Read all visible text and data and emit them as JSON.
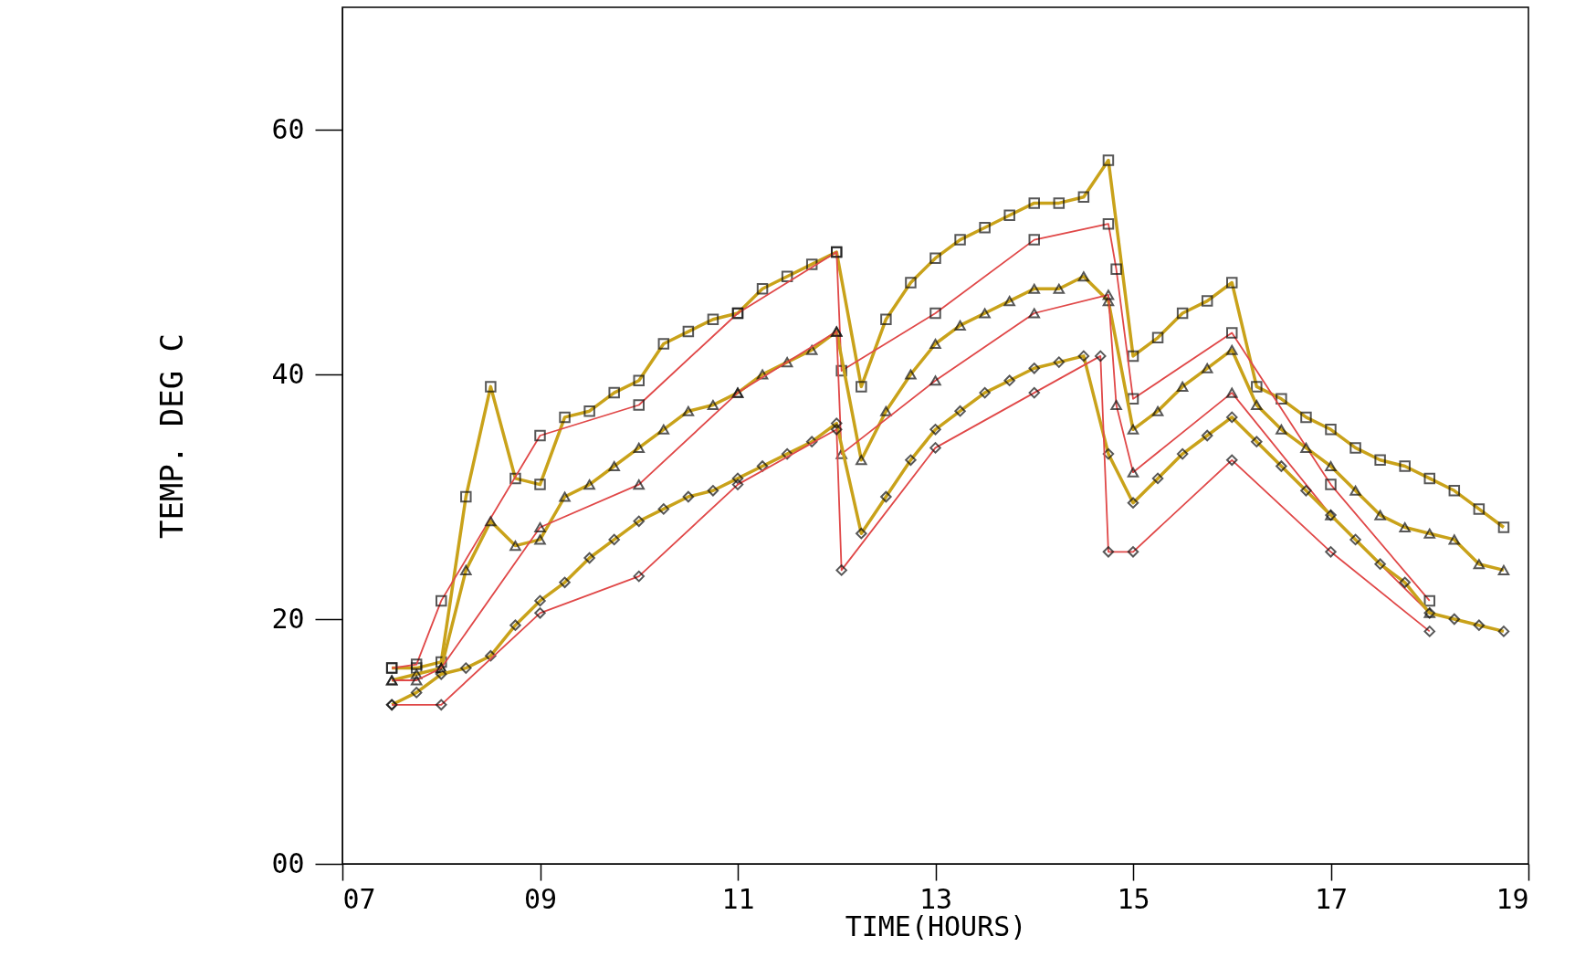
{
  "chart_data": {
    "type": "line",
    "xlabel": "TIME(HOURS)",
    "ylabel": "TEMP. DEG C",
    "xlim": [
      7,
      19
    ],
    "ylim": [
      0,
      70
    ],
    "xticks": [
      {
        "value": 7,
        "label": "07"
      },
      {
        "value": 9,
        "label": "09"
      },
      11,
      13,
      15,
      17,
      19
    ],
    "yticks": [
      {
        "value": 0,
        "label": "00"
      },
      20,
      40,
      60
    ],
    "series": [
      {
        "color": "#c9a21a",
        "marker": "square",
        "x": [
          7.5,
          7.75,
          8,
          8.25,
          8.5,
          8.75,
          9,
          9.25,
          9.5,
          9.75,
          10,
          10.25,
          10.5,
          10.75,
          11,
          11.25,
          11.5,
          11.75,
          12,
          12.25,
          12.5,
          12.75,
          13,
          13.25,
          13.5,
          13.75,
          14,
          14.25,
          14.5,
          14.75,
          15,
          15.25,
          15.5,
          15.75,
          16,
          16.25,
          16.5,
          16.75,
          17,
          17.25,
          17.5,
          17.75,
          18,
          18.25,
          18.5,
          18.75
        ],
        "values": [
          16,
          16,
          16.5,
          30,
          39,
          31.5,
          31,
          36.5,
          37,
          38.5,
          39.5,
          42.5,
          43.5,
          44.5,
          45,
          47,
          48,
          49,
          50,
          39,
          44.5,
          47.5,
          49.5,
          51,
          52,
          53,
          54,
          54,
          54.5,
          57.5,
          41.5,
          43,
          45,
          46,
          47.5,
          39,
          38,
          36.5,
          35.5,
          34,
          33,
          32.5,
          31.5,
          30.5,
          29,
          27.5
        ]
      },
      {
        "color": "#e04848",
        "marker": "square",
        "x": [
          7.5,
          7.75,
          8,
          9,
          10,
          11,
          12,
          12.05,
          13,
          14,
          14.75,
          14.83,
          15,
          16,
          17,
          18
        ],
        "values": [
          16,
          16.3,
          21.5,
          35,
          37.5,
          45,
          50,
          40.3,
          45,
          51,
          52.3,
          48.6,
          38,
          43.4,
          31,
          21.5
        ]
      },
      {
        "color": "#c9a21a",
        "marker": "triangle",
        "x": [
          7.5,
          7.75,
          8,
          8.25,
          8.5,
          8.75,
          9,
          9.25,
          9.5,
          9.75,
          10,
          10.25,
          10.5,
          10.75,
          11,
          11.25,
          11.5,
          11.75,
          12,
          12.25,
          12.5,
          12.75,
          13,
          13.25,
          13.5,
          13.75,
          14,
          14.25,
          14.5,
          14.75,
          15,
          15.25,
          15.5,
          15.75,
          16,
          16.25,
          16.5,
          16.75,
          17,
          17.25,
          17.5,
          17.75,
          18,
          18.25,
          18.5,
          18.75
        ],
        "values": [
          15,
          15.5,
          16,
          24,
          28,
          26,
          26.5,
          30,
          31,
          32.5,
          34,
          35.5,
          37,
          37.5,
          38.5,
          40,
          41,
          42,
          43.5,
          33,
          37,
          40,
          42.5,
          44,
          45,
          46,
          47,
          47,
          48,
          46,
          35.5,
          37,
          39,
          40.5,
          42,
          37.5,
          35.5,
          34,
          32.5,
          30.5,
          28.5,
          27.5,
          27,
          26.5,
          24.5,
          24
        ]
      },
      {
        "color": "#e04848",
        "marker": "triangle",
        "x": [
          7.5,
          7.75,
          8,
          9,
          10,
          11,
          12,
          12.05,
          13,
          14,
          14.75,
          14.83,
          15,
          16,
          17,
          18
        ],
        "values": [
          15,
          15,
          16,
          27.5,
          31,
          38.5,
          43.5,
          33.5,
          39.5,
          45,
          46.5,
          37.5,
          32,
          38.5,
          28.5,
          20.5
        ]
      },
      {
        "color": "#c9a21a",
        "marker": "diamond",
        "x": [
          7.5,
          7.75,
          8,
          8.25,
          8.5,
          8.75,
          9,
          9.25,
          9.5,
          9.75,
          10,
          10.25,
          10.5,
          10.75,
          11,
          11.25,
          11.5,
          11.75,
          12,
          12.25,
          12.5,
          12.75,
          13,
          13.25,
          13.5,
          13.75,
          14,
          14.25,
          14.5,
          14.75,
          15,
          15.25,
          15.5,
          15.75,
          16,
          16.25,
          16.5,
          16.75,
          17,
          17.25,
          17.5,
          17.75,
          18,
          18.25,
          18.5,
          18.75
        ],
        "values": [
          13,
          14,
          15.5,
          16,
          17,
          19.5,
          21.5,
          23,
          25,
          26.5,
          28,
          29,
          30,
          30.5,
          31.5,
          32.5,
          33.5,
          34.5,
          36,
          27,
          30,
          33,
          35.5,
          37,
          38.5,
          39.5,
          40.5,
          41,
          41.5,
          33.5,
          29.5,
          31.5,
          33.5,
          35,
          36.5,
          34.5,
          32.5,
          30.5,
          28.5,
          26.5,
          24.5,
          23,
          20.5,
          20,
          19.5,
          19
        ]
      },
      {
        "color": "#e04848",
        "marker": "diamond",
        "x": [
          7.5,
          8,
          9,
          10,
          11,
          12,
          12.05,
          13,
          14,
          14.67,
          14.75,
          15,
          16,
          17,
          18
        ],
        "values": [
          13,
          13,
          20.5,
          23.5,
          31,
          35.5,
          24,
          34,
          38.5,
          41.5,
          25.5,
          25.5,
          33,
          25.5,
          19
        ]
      }
    ]
  }
}
